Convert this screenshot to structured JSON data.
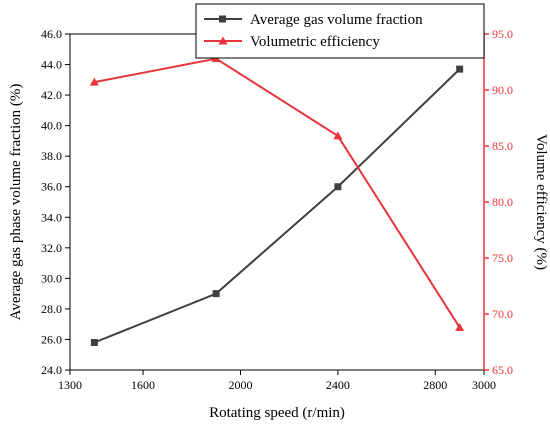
{
  "chart_data": {
    "type": "line",
    "xlabel": "Rotating speed (r/min)",
    "ylabel_left": "Average gas phase volume fraction (%)",
    "ylabel_right": "Volume efficiency (%)",
    "xlim": [
      1300,
      3000
    ],
    "x_ticks": [
      "1300",
      "1600",
      "2000",
      "2400",
      "2800",
      "3000"
    ],
    "ylim_left": [
      24.0,
      46.0
    ],
    "y_left_ticks": [
      "24.0",
      "26.0",
      "28.0",
      "30.0",
      "32.0",
      "34.0",
      "36.0",
      "38.0",
      "40.0",
      "42.0",
      "44.0",
      "46.0"
    ],
    "ylim_right": [
      65.0,
      95.0
    ],
    "y_right_ticks": [
      "65.0",
      "70.0",
      "75.0",
      "80.0",
      "85.0",
      "90.0",
      "95.0"
    ],
    "grid": false,
    "legend_position": "top-right",
    "series": [
      {
        "name": "Average gas volume fraction",
        "axis": "left",
        "color": "#404040",
        "marker": "square",
        "x": [
          1400,
          1900,
          2400,
          2900
        ],
        "values": [
          25.8,
          29.0,
          36.0,
          43.7
        ]
      },
      {
        "name": "Volumetric efficiency",
        "axis": "right",
        "color": "#e8353b",
        "marker": "triangle",
        "x": [
          1400,
          1900,
          2400,
          2900
        ],
        "values": [
          90.7,
          92.8,
          85.9,
          68.8
        ]
      }
    ]
  }
}
